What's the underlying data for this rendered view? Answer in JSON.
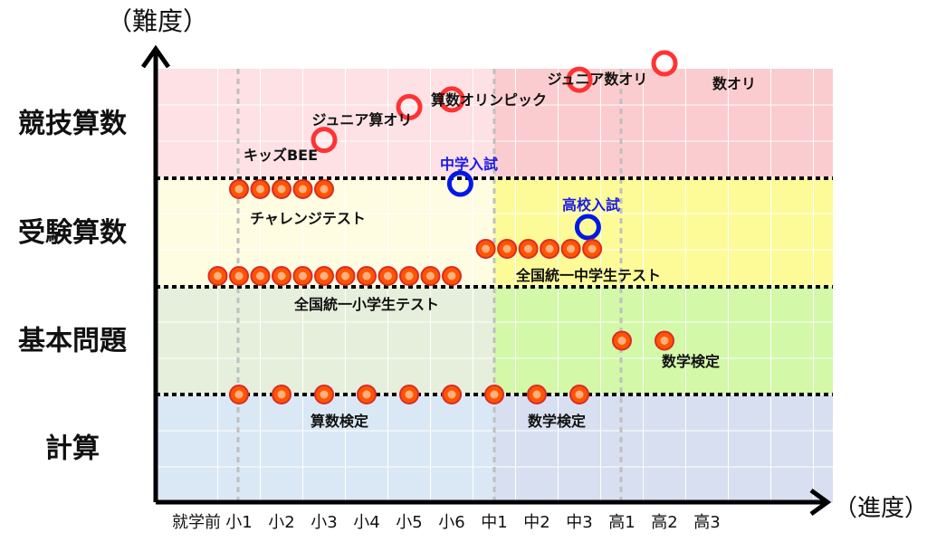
{
  "chart_data": {
    "type": "scatter",
    "y_axis_title": "（難度）",
    "x_axis_title": "（進度）",
    "grades": [
      "就学前",
      "小1",
      "小2",
      "小3",
      "小4",
      "小5",
      "小6",
      "中1",
      "中2",
      "中3",
      "高1",
      "高2",
      "高3"
    ],
    "levels": [
      {
        "label": "計算",
        "color": "#dae8f5"
      },
      {
        "label": "基本問題",
        "color": "#e6efdb"
      },
      {
        "label": "受験算数",
        "color": "#fefce1"
      },
      {
        "label": "競技算数",
        "color": "#fde1e4"
      }
    ],
    "zones_middle_high": [
      {
        "level": "計算",
        "color": "#d8dff0"
      },
      {
        "level": "基本問題",
        "color": "#d2f8a8"
      },
      {
        "level": "受験算数",
        "color": "#fcfb98"
      },
      {
        "level": "競技算数",
        "color": "#fbcccf"
      }
    ],
    "competitions": [
      {
        "name": "キッズBEE",
        "grade": 3.0,
        "difficulty": 3.35
      },
      {
        "name": "ジュニア算オリ",
        "grade": 5.0,
        "difficulty": 3.65
      },
      {
        "name": "算数オリンピック",
        "grade": 6.0,
        "difficulty": 3.72
      },
      {
        "name": "ジュニア数オリ",
        "grade": 9.0,
        "difficulty": 3.9
      },
      {
        "name": "数オリ",
        "grade": 11.0,
        "difficulty": 4.05
      }
    ],
    "entrance_exams": [
      {
        "name": "中学入試",
        "grade": 6.2,
        "difficulty": 2.95
      },
      {
        "name": "高校入試",
        "grade": 9.2,
        "difficulty": 2.55
      }
    ],
    "series": [
      {
        "name": "チャレンジテスト",
        "grades": [
          1,
          1.5,
          2,
          2.5,
          3
        ],
        "difficulty": 2.9
      },
      {
        "name": "全国統一小学生テスト",
        "grades": [
          0.5,
          1,
          1.5,
          2,
          2.5,
          3,
          3.5,
          4,
          4.5,
          5,
          5.5,
          6
        ],
        "difficulty": 2.1
      },
      {
        "name": "全国統一中学生テスト",
        "grades": [
          6.8,
          7.3,
          7.8,
          8.3,
          8.8,
          9.3
        ],
        "difficulty": 2.35
      },
      {
        "name": "数学検定",
        "grades": [
          10,
          11
        ],
        "difficulty": 1.5
      },
      {
        "name": "算数検定",
        "grades": [
          1,
          2,
          3,
          4,
          5,
          6
        ],
        "difficulty": 1.0
      },
      {
        "name": "数学検定",
        "grades": [
          7,
          8,
          9
        ],
        "difficulty": 1.0
      }
    ],
    "colors": {
      "marker_fill": "#ff5500",
      "marker_ring": "#d92b2b",
      "open_marker": "#ff3333",
      "exam_marker": "#0018e6",
      "exam_label": "#1a1ae6"
    }
  }
}
